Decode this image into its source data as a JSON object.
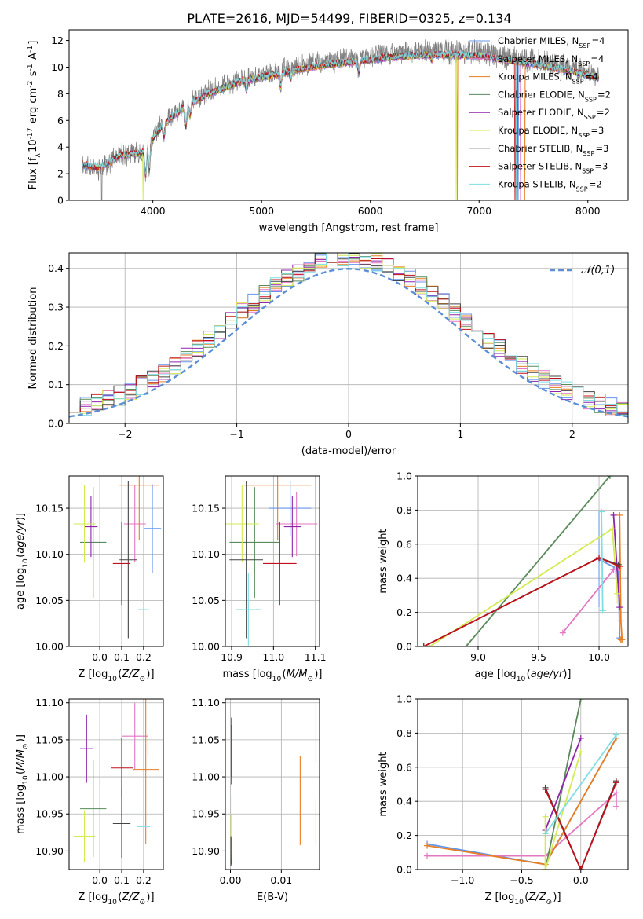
{
  "figure_title": "PLATE=2616, MJD=54499, FIBERID=0325, z=0.134",
  "colors": {
    "chabrier_miles": "#6495ed",
    "salpeter_miles": "#e377c2",
    "kroupa_miles": "#e67e22",
    "chabrier_elodie": "#5a8a5a",
    "salpeter_elodie": "#8e24aa",
    "kroupa_elodie": "#d4ea50",
    "chabrier_stelib": "#444444",
    "salpeter_stelib": "#c0101a",
    "kroupa_stelib": "#7fdde4",
    "data": "#808080"
  },
  "model_labels": [
    "Chabrier MILES, N$_{SSP}$=4",
    "Salpeter MILES, N$_{SSP}$=4",
    "Kroupa MILES, N$_{SSP}$=4",
    "Chabrier ELODIE, N$_{SSP}$=2",
    "Salpeter ELODIE, N$_{SSP}$=2",
    "Kroupa ELODIE, N$_{SSP}$=3",
    "Chabrier STELIB, N$_{SSP}$=3",
    "Salpeter STELIB, N$_{SSP}$=3",
    "Kroupa STELIB, N$_{SSP}$=2"
  ],
  "chart_data": [
    {
      "id": "spectrum",
      "type": "line",
      "xlabel": "wavelength [Angstrom, rest frame]",
      "ylabel": "Flux [f$_{\\lambda}$10$^{-17}$ erg cm$^{-2}$ s$^{-1}$ A$^{-1}$]",
      "xlim": [
        3230,
        8370
      ],
      "ylim": [
        0,
        12.8
      ],
      "xticks": [
        4000,
        5000,
        6000,
        7000,
        8000
      ],
      "yticks": [
        0,
        2,
        4,
        6,
        8,
        10,
        12
      ],
      "grid": false,
      "legend": "top-right",
      "continuum": {
        "x": [
          3350,
          3500,
          3700,
          3900,
          4100,
          4300,
          4500,
          4800,
          5100,
          5500,
          5800,
          6200,
          6600,
          7000,
          7400,
          7800,
          8100
        ],
        "y": [
          2.7,
          2.4,
          3.4,
          3.6,
          5.8,
          7.2,
          8.1,
          9.1,
          9.6,
          10.3,
          10.6,
          11.0,
          11.2,
          11.1,
          10.6,
          10.0,
          9.4
        ]
      },
      "absorption_features": [
        {
          "x": 3934,
          "depth": 2.2
        },
        {
          "x": 3968,
          "depth": 2.0
        },
        {
          "x": 4102,
          "depth": 1.0
        },
        {
          "x": 4305,
          "depth": 1.6
        },
        {
          "x": 4340,
          "depth": 1.0
        },
        {
          "x": 4861,
          "depth": 0.8
        },
        {
          "x": 5175,
          "depth": 1.0
        },
        {
          "x": 5270,
          "depth": 0.5
        },
        {
          "x": 5893,
          "depth": 0.9
        },
        {
          "x": 6563,
          "depth": 0.4
        }
      ]
    },
    {
      "id": "residuals",
      "type": "histogram",
      "xlabel": "(data-model)/error",
      "ylabel": "Normed distribution",
      "xlim": [
        -2.5,
        2.5
      ],
      "ylim": [
        0,
        0.44
      ],
      "xticks": [
        -2,
        -1,
        0,
        1,
        2
      ],
      "yticks": [
        0.0,
        0.1,
        0.2,
        0.3,
        0.4
      ],
      "grid": true,
      "legend": "top-right",
      "reference": {
        "name": "$\\mathcal{N}(0,1)$",
        "mean": 0,
        "sigma": 1,
        "style": "dashed"
      },
      "bin_width": 0.1,
      "seed": 7
    },
    {
      "id": "age_vs_Z",
      "type": "scatter",
      "xlabel": "Z [log$_{10}$($Z/Z_{\\odot}$)]",
      "ylabel": "age  [log$_{10}$($age/yr$)]",
      "xlim": [
        -0.14,
        0.29
      ],
      "ylim": [
        10.0,
        10.185
      ],
      "xticks": [
        0.0,
        0.1,
        0.2
      ],
      "yticks": [
        10.0,
        10.05,
        10.1,
        10.15
      ],
      "grid": true,
      "points": [
        {
          "model": 0,
          "x": 0.24,
          "y": 10.128,
          "ex": 0.04,
          "ey": 0.048
        },
        {
          "model": 1,
          "x": 0.16,
          "y": 10.133,
          "ex": 0.05,
          "ey": 0.042
        },
        {
          "model": 2,
          "x": 0.18,
          "y": 10.175,
          "ex": 0.09,
          "ey": 0.06
        },
        {
          "model": 3,
          "x": -0.03,
          "y": 10.113,
          "ex": 0.06,
          "ey": 0.06
        },
        {
          "model": 4,
          "x": -0.04,
          "y": 10.13,
          "ex": 0.03,
          "ey": 0.033
        },
        {
          "model": 5,
          "x": -0.07,
          "y": 10.133,
          "ex": 0.05,
          "ey": 0.042
        },
        {
          "model": 6,
          "x": 0.13,
          "y": 10.094,
          "ex": 0.04,
          "ey": 0.085
        },
        {
          "model": 7,
          "x": 0.1,
          "y": 10.09,
          "ex": 0.04,
          "ey": 0.045
        },
        {
          "model": 8,
          "x": 0.2,
          "y": 10.04,
          "ex": 0.025,
          "ey": 0.04
        }
      ]
    },
    {
      "id": "age_vs_mass",
      "type": "scatter",
      "xlabel": "mass [log$_{10}$($M/M_{\\odot}$)]",
      "ylabel": "",
      "xlim": [
        10.885,
        11.11
      ],
      "ylim": [
        10.0,
        10.185
      ],
      "xticks": [
        10.9,
        11.0,
        11.1
      ],
      "yticks": [
        10.0,
        10.05,
        10.1,
        10.15
      ],
      "grid": true,
      "points": [
        {
          "model": 0,
          "x": 11.04,
          "y": 10.15,
          "ex": 0.05,
          "ey": 0.03
        },
        {
          "model": 1,
          "x": 11.055,
          "y": 10.133,
          "ex": 0.05,
          "ey": 0.035
        },
        {
          "model": 2,
          "x": 11.01,
          "y": 10.175,
          "ex": 0.08,
          "ey": 0.06
        },
        {
          "model": 3,
          "x": 10.955,
          "y": 10.113,
          "ex": 0.06,
          "ey": 0.06
        },
        {
          "model": 4,
          "x": 11.045,
          "y": 10.13,
          "ex": 0.02,
          "ey": 0.033
        },
        {
          "model": 5,
          "x": 10.925,
          "y": 10.133,
          "ex": 0.04,
          "ey": 0.042
        },
        {
          "model": 6,
          "x": 10.935,
          "y": 10.094,
          "ex": 0.04,
          "ey": 0.085
        },
        {
          "model": 7,
          "x": 11.015,
          "y": 10.09,
          "ex": 0.04,
          "ey": 0.045
        },
        {
          "model": 8,
          "x": 10.94,
          "y": 10.04,
          "ex": 0.03,
          "ey": 0.04
        }
      ]
    },
    {
      "id": "weight_vs_age",
      "type": "line",
      "xlabel": "age  [log$_{10}$($age/yr$)]",
      "ylabel": "mass weight",
      "xlim": [
        8.5,
        10.24
      ],
      "ylim": [
        0.0,
        1.0
      ],
      "xticks": [
        9.0,
        9.5,
        10.0
      ],
      "yticks": [
        0.0,
        0.2,
        0.4,
        0.6,
        0.8,
        1.0
      ],
      "grid": true,
      "series": [
        {
          "model": 0,
          "x": [
            10.0,
            10.14,
            10.16,
            10.17
          ],
          "y": [
            0.51,
            0.46,
            0.48,
            0.05
          ],
          "ey": [
            0.28,
            0.0,
            0.0,
            0.0
          ]
        },
        {
          "model": 1,
          "x": [
            9.7,
            10.12,
            10.16
          ],
          "y": [
            0.08,
            0.45,
            0.46
          ],
          "ey": [
            0.0,
            0.0,
            0.0
          ]
        },
        {
          "model": 2,
          "x": [
            10.17,
            10.18,
            10.19,
            10.18
          ],
          "y": [
            0.77,
            0.15,
            0.04,
            0.04
          ],
          "ey": [
            0.0,
            0.0,
            0.0,
            0.0
          ]
        },
        {
          "model": 3,
          "x": [
            8.9,
            10.09
          ],
          "y": [
            0.0,
            1.0
          ],
          "ey": [
            0.0,
            0.0
          ]
        },
        {
          "model": 4,
          "x": [
            10.12,
            10.17
          ],
          "y": [
            0.77,
            0.23
          ],
          "ey": [
            0.0,
            0.0
          ]
        },
        {
          "model": 5,
          "x": [
            8.6,
            10.11,
            10.15
          ],
          "y": [
            0.0,
            0.69,
            0.31
          ],
          "ey": [
            0.0,
            0.0,
            0.06
          ]
        },
        {
          "model": 6,
          "x": [
            8.55,
            10.0,
            10.16
          ],
          "y": [
            0.0,
            0.52,
            0.48
          ],
          "ey": [
            0.0,
            0.0,
            0.0
          ]
        },
        {
          "model": 7,
          "x": [
            8.55,
            10.0,
            10.17
          ],
          "y": [
            0.0,
            0.52,
            0.47
          ],
          "ey": [
            0.0,
            0.0,
            0.0
          ]
        },
        {
          "model": 8,
          "x": [
            10.02,
            10.03
          ],
          "y": [
            0.79,
            0.21
          ],
          "ey": [
            0.0,
            0.0
          ]
        }
      ]
    },
    {
      "id": "mass_vs_Z",
      "type": "scatter",
      "xlabel": "Z [log$_{10}$($Z/Z_{\\odot}$)]",
      "ylabel": "mass [log$_{10}$($M/M_{\\odot}$)]",
      "xlim": [
        -0.14,
        0.29
      ],
      "ylim": [
        10.875,
        11.105
      ],
      "xticks": [
        0.0,
        0.1,
        0.2
      ],
      "yticks": [
        10.9,
        10.95,
        11.0,
        11.05,
        11.1
      ],
      "grid": true,
      "points": [
        {
          "model": 0,
          "x": 0.22,
          "y": 11.043,
          "ex": 0.05,
          "ey": 0.015
        },
        {
          "model": 1,
          "x": 0.16,
          "y": 11.055,
          "ex": 0.06,
          "ey": 0.045
        },
        {
          "model": 2,
          "x": 0.21,
          "y": 11.01,
          "ex": 0.06,
          "ey": 0.1
        },
        {
          "model": 3,
          "x": -0.03,
          "y": 10.957,
          "ex": 0.06,
          "ey": 0.065
        },
        {
          "model": 4,
          "x": -0.06,
          "y": 11.038,
          "ex": 0.03,
          "ey": 0.046
        },
        {
          "model": 5,
          "x": -0.07,
          "y": 10.92,
          "ex": 0.05,
          "ey": 0.035
        },
        {
          "model": 6,
          "x": 0.1,
          "y": 10.937,
          "ex": 0.04,
          "ey": 0.046
        },
        {
          "model": 7,
          "x": 0.1,
          "y": 11.012,
          "ex": 0.05,
          "ey": 0.04
        },
        {
          "model": 8,
          "x": 0.2,
          "y": 10.933,
          "ex": 0.03,
          "ey": 0.02
        }
      ]
    },
    {
      "id": "mass_vs_EBV",
      "type": "scatter",
      "xlabel": "E(B-V)",
      "ylabel": "",
      "xlim": [
        -0.001,
        0.0175
      ],
      "ylim": [
        10.875,
        11.105
      ],
      "xticks": [
        0.0,
        0.01
      ],
      "yticks": [
        10.9,
        10.95,
        11.0,
        11.05,
        11.1
      ],
      "grid": true,
      "points": [
        {
          "model": 0,
          "x": 0.0168,
          "y": 10.94,
          "ex": 0.0,
          "ey": 0.03
        },
        {
          "model": 1,
          "x": 0.0168,
          "y": 11.06,
          "ex": 0.0,
          "ey": 0.04
        },
        {
          "model": 2,
          "x": 0.0137,
          "y": 10.968,
          "ex": 0.0,
          "ey": 0.06
        },
        {
          "model": 3,
          "x": 0.0002,
          "y": 10.9,
          "ex": 0.0,
          "ey": 0.018
        },
        {
          "model": 4,
          "x": 0.0002,
          "y": 11.04,
          "ex": 0.0,
          "ey": 0.04
        },
        {
          "model": 5,
          "x": 0.0001,
          "y": 10.92,
          "ex": 0.0,
          "ey": 0.03
        },
        {
          "model": 6,
          "x": 0.0001,
          "y": 10.9,
          "ex": 0.0,
          "ey": 0.02
        },
        {
          "model": 7,
          "x": 0.0002,
          "y": 11.03,
          "ex": 0.0,
          "ey": 0.04
        },
        {
          "model": 8,
          "x": 0.0003,
          "y": 10.935,
          "ex": 0.0,
          "ey": 0.04
        }
      ]
    },
    {
      "id": "weight_vs_Z",
      "type": "line",
      "xlabel": "Z [log$_{10}$($Z/Z_{\\odot}$)]",
      "ylabel": "mass weight",
      "xlim": [
        -1.38,
        0.4
      ],
      "ylim": [
        0.0,
        1.0
      ],
      "xticks": [
        -1.0,
        -0.5,
        0.0
      ],
      "yticks": [
        0.0,
        0.2,
        0.4,
        0.6,
        0.8,
        1.0
      ],
      "grid": true,
      "series": [
        {
          "model": 0,
          "x": [
            -1.3,
            -0.3,
            0.3
          ],
          "y": [
            0.15,
            0.03,
            0.77
          ],
          "ey": [
            0.0,
            0.0,
            0.0
          ]
        },
        {
          "model": 1,
          "x": [
            -1.3,
            -0.3,
            0.3,
            0.3
          ],
          "y": [
            0.08,
            0.08,
            0.45,
            0.37
          ],
          "ey": [
            0.0,
            0.0,
            0.0,
            0.0
          ]
        },
        {
          "model": 2,
          "x": [
            -1.3,
            -0.3,
            0.3
          ],
          "y": [
            0.14,
            0.03,
            0.77
          ],
          "ey": [
            0.0,
            0.0,
            0.0
          ]
        },
        {
          "model": 3,
          "x": [
            -0.3,
            0.0
          ],
          "y": [
            0.0,
            1.0
          ],
          "ey": [
            0.0,
            0.0
          ]
        },
        {
          "model": 4,
          "x": [
            -0.3,
            0.0
          ],
          "y": [
            0.23,
            0.77
          ],
          "ey": [
            0.0,
            0.0
          ]
        },
        {
          "model": 5,
          "x": [
            -0.3,
            -0.3,
            0.0
          ],
          "y": [
            0.31,
            0.0,
            0.69
          ],
          "ey": [
            0.0,
            0.0,
            0.0
          ]
        },
        {
          "model": 6,
          "x": [
            -0.3,
            0.0,
            0.3
          ],
          "y": [
            0.48,
            0.0,
            0.52
          ],
          "ey": [
            0.0,
            0.0,
            0.0
          ]
        },
        {
          "model": 7,
          "x": [
            -0.3,
            0.0,
            0.3
          ],
          "y": [
            0.47,
            0.0,
            0.51
          ],
          "ey": [
            0.0,
            0.0,
            0.0
          ]
        },
        {
          "model": 8,
          "x": [
            -0.3,
            0.3
          ],
          "y": [
            0.21,
            0.79
          ],
          "ey": [
            0.0,
            0.0
          ]
        }
      ]
    }
  ]
}
